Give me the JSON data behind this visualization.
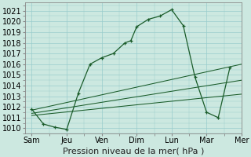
{
  "background_color": "#cce8e0",
  "grid_color": "#99cccc",
  "line_color": "#1a5c2a",
  "x_labels": [
    "Sam",
    "Jeu",
    "Ven",
    "Dim",
    "Lun",
    "Mar",
    "Mer"
  ],
  "ylim": [
    1009.5,
    1021.8
  ],
  "yticks": [
    1010,
    1011,
    1012,
    1013,
    1014,
    1015,
    1016,
    1017,
    1018,
    1019,
    1020,
    1021
  ],
  "main_line_x": [
    0,
    0.5,
    1.0,
    1.5,
    2.0,
    2.5,
    3.0,
    3.5,
    4.0,
    4.25,
    4.5,
    5.0,
    5.5,
    6.0,
    6.5,
    7.0,
    7.5,
    8.0,
    8.5
  ],
  "main_line_y": [
    1011.8,
    1010.4,
    1010.1,
    1009.9,
    1013.3,
    1016.0,
    1016.6,
    1017.0,
    1018.0,
    1018.2,
    1019.5,
    1020.2,
    1020.5,
    1021.1,
    1019.6,
    1014.8,
    1011.5,
    1011.0,
    1015.7
  ],
  "trend_lines": [
    {
      "x": [
        0,
        9
      ],
      "y": [
        1011.7,
        1016.0
      ]
    },
    {
      "x": [
        0,
        9
      ],
      "y": [
        1011.4,
        1014.5
      ]
    },
    {
      "x": [
        0,
        9
      ],
      "y": [
        1011.2,
        1013.2
      ]
    }
  ],
  "xlabel": "Pression niveau de la mer( hPa )",
  "xlabel_fontsize": 8,
  "tick_fontsize": 7,
  "xlim": [
    -0.3,
    9.0
  ]
}
